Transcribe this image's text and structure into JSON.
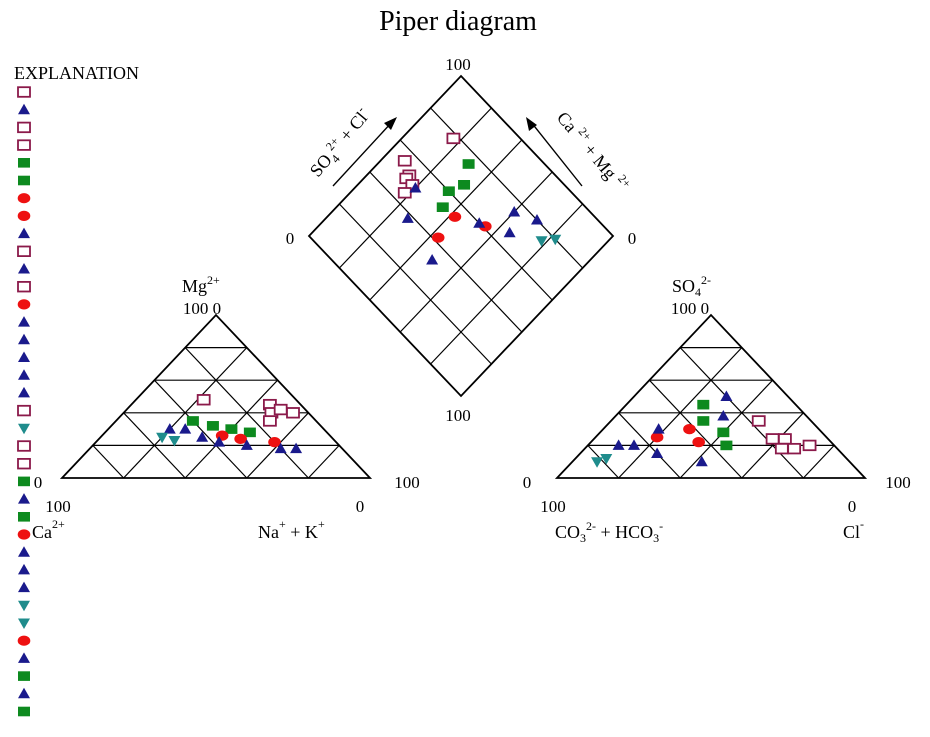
{
  "title": "Piper diagram",
  "explanation_label": "EXPLANATION",
  "colors": {
    "open_square": "#8b1a4a",
    "triangle": "#1a1a8c",
    "green_square": "#0d8a1f",
    "red_dot": "#ee1111",
    "teal_triangle": "#1f8c8c"
  },
  "legend_symbols": [
    "open_square",
    "triangle",
    "open_square",
    "open_square",
    "green_square",
    "green_square",
    "red_dot",
    "red_dot",
    "triangle",
    "open_square",
    "triangle",
    "open_square",
    "red_dot",
    "triangle",
    "triangle",
    "triangle",
    "triangle",
    "triangle",
    "open_square",
    "teal_triangle",
    "open_square",
    "open_square",
    "green_square",
    "triangle",
    "green_square",
    "red_dot",
    "triangle",
    "triangle",
    "triangle",
    "teal_triangle",
    "teal_triangle",
    "red_dot",
    "triangle",
    "green_square",
    "triangle",
    "green_square"
  ],
  "ticks": {
    "cation_100": "100",
    "cation_0": "0",
    "cation_apex": "100 0",
    "cation_bl_0": "0",
    "cation_bl_100": "100",
    "cation_br_0": "0",
    "anion_100": "100",
    "anion_0": "0",
    "anion_apex": "100 0",
    "anion_bl_0": "0",
    "anion_bl_100": "100",
    "anion_br_0": "0",
    "diamond_top": "100",
    "diamond_left": "0",
    "diamond_right": "0",
    "diamond_bottom": "100"
  },
  "labels": {
    "mg": "Mg",
    "mg_sup": "2+",
    "ca": "Ca",
    "ca_sup": "2+",
    "nak": "Na",
    "nak_sup1": "+",
    "nak_mid": " + K",
    "nak_sup2": "+",
    "so4": "SO",
    "so4_sub": "4",
    "so4_sup": "2-",
    "co3": "CO",
    "co3_sub": "3",
    "co3_sup": "2-",
    "co3_mid": " + HCO",
    "hco3_sub": "3",
    "hco3_sup": "-",
    "cl": "Cl",
    "cl_sup": "-",
    "diamond_left_axis": "SO4 2+ + Cl-",
    "diamond_right_axis": "Ca 2+ + Mg 2+"
  },
  "chart_data": {
    "type": "scatter",
    "subtype": "piper",
    "title": "Piper diagram",
    "legend_title": "EXPLANATION",
    "samples": [
      {
        "sym": "open_square",
        "ca": 10,
        "mg": 45,
        "na": 45,
        "cl": 72,
        "so4": 20,
        "hco3": 8
      },
      {
        "sym": "open_square",
        "ca": 12,
        "mg": 40,
        "na": 48,
        "cl": 68,
        "so4": 18,
        "hco3": 14
      },
      {
        "sym": "open_square",
        "ca": 8,
        "mg": 42,
        "na": 50,
        "cl": 62,
        "so4": 24,
        "hco3": 14
      },
      {
        "sym": "open_square",
        "ca": 15,
        "mg": 35,
        "na": 50,
        "cl": 58,
        "so4": 24,
        "hco3": 18
      },
      {
        "sym": "open_square",
        "ca": 5,
        "mg": 40,
        "na": 55,
        "cl": 64,
        "so4": 18,
        "hco3": 18
      },
      {
        "sym": "open_square",
        "ca": 30,
        "mg": 48,
        "na": 22,
        "cl": 48,
        "so4": 35,
        "hco3": 17
      },
      {
        "sym": "green_square",
        "ca": 40,
        "mg": 35,
        "na": 25,
        "cl": 25,
        "so4": 45,
        "hco3": 30
      },
      {
        "sym": "green_square",
        "ca": 35,
        "mg": 32,
        "na": 33,
        "cl": 30,
        "so4": 35,
        "hco3": 35
      },
      {
        "sym": "green_square",
        "ca": 30,
        "mg": 30,
        "na": 40,
        "cl": 40,
        "so4": 28,
        "hco3": 32
      },
      {
        "sym": "green_square",
        "ca": 25,
        "mg": 28,
        "na": 47,
        "cl": 45,
        "so4": 20,
        "hco3": 35
      },
      {
        "sym": "red_dot",
        "ca": 35,
        "mg": 26,
        "na": 39,
        "cl": 20,
        "so4": 25,
        "hco3": 55
      },
      {
        "sym": "red_dot",
        "ca": 30,
        "mg": 24,
        "na": 46,
        "cl": 28,
        "so4": 30,
        "hco3": 42
      },
      {
        "sym": "red_dot",
        "ca": 20,
        "mg": 22,
        "na": 58,
        "cl": 35,
        "so4": 22,
        "hco3": 43
      },
      {
        "sym": "triangle",
        "ca": 45,
        "mg": 30,
        "na": 25,
        "cl": 25,
        "so4": 15,
        "hco3": 60
      },
      {
        "sym": "triangle",
        "ca": 42,
        "mg": 25,
        "na": 33,
        "cl": 15,
        "so4": 20,
        "hco3": 65
      },
      {
        "sym": "triangle",
        "ca": 38,
        "mg": 22,
        "na": 40,
        "cl": 18,
        "so4": 30,
        "hco3": 52
      },
      {
        "sym": "triangle",
        "ca": 30,
        "mg": 20,
        "na": 50,
        "cl": 30,
        "so4": 50,
        "hco3": 20
      },
      {
        "sym": "triangle",
        "ca": 20,
        "mg": 18,
        "na": 62,
        "cl": 35,
        "so4": 38,
        "hco3": 27
      },
      {
        "sym": "triangle",
        "ca": 15,
        "mg": 18,
        "na": 67,
        "cl": 42,
        "so4": 10,
        "hco3": 48
      },
      {
        "sym": "triangle",
        "ca": 50,
        "mg": 30,
        "na": 20,
        "cl": 10,
        "so4": 20,
        "hco3": 70
      },
      {
        "sym": "teal_triangle",
        "ca": 55,
        "mg": 25,
        "na": 20,
        "cl": 8,
        "so4": 10,
        "hco3": 82
      },
      {
        "sym": "teal_triangle",
        "ca": 52,
        "mg": 23,
        "na": 25,
        "cl": 10,
        "so4": 12,
        "hco3": 78
      }
    ]
  }
}
